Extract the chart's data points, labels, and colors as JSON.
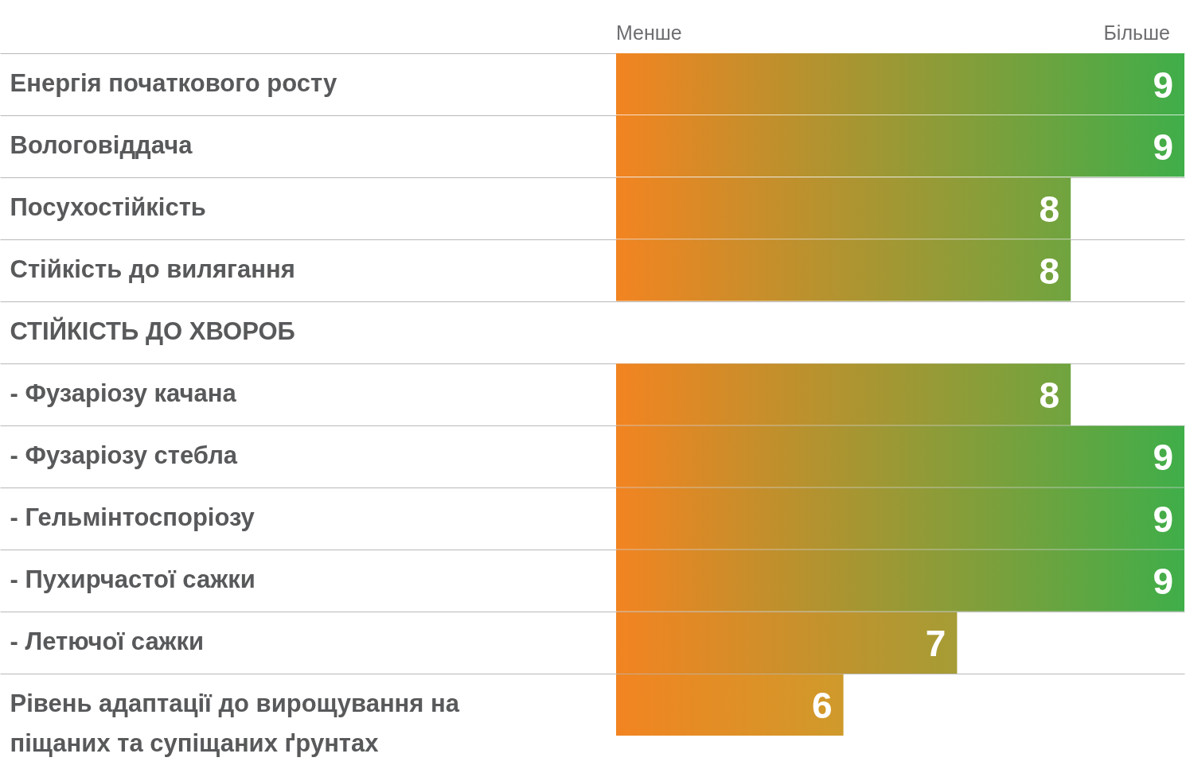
{
  "chart_data": {
    "type": "bar",
    "orientation": "horizontal",
    "categories": [
      "Енергія початкового росту",
      "Вологовіддача",
      "Посухостійкість",
      "Стійкість до вилягання",
      "СТІЙКІСТЬ ДО ХВОРОБ",
      "- Фузаріозу качана",
      "- Фузаріозу стебла",
      "- Гельмінтоспоріозу",
      "- Пухирчастої сажки",
      "- Летючої сажки",
      "Рівень адаптації до вирощування на піщаних та супіщаних ґрунтах"
    ],
    "values": [
      9,
      9,
      8,
      8,
      null,
      8,
      9,
      9,
      9,
      7,
      6
    ],
    "color": "#f28421",
    "colors": [
      "#3fae49",
      "#3fae49",
      "#6fa43f",
      "#6fa43f",
      null,
      "#6fa43f",
      "#3fae49",
      "#3fae49",
      "#3fae49",
      "#a59c35",
      "#cf9a2b"
    ],
    "xlim": [
      4,
      9
    ],
    "data_labels": true,
    "grid": "y",
    "annotations": [
      "Менше",
      "Більше"
    ]
  }
}
